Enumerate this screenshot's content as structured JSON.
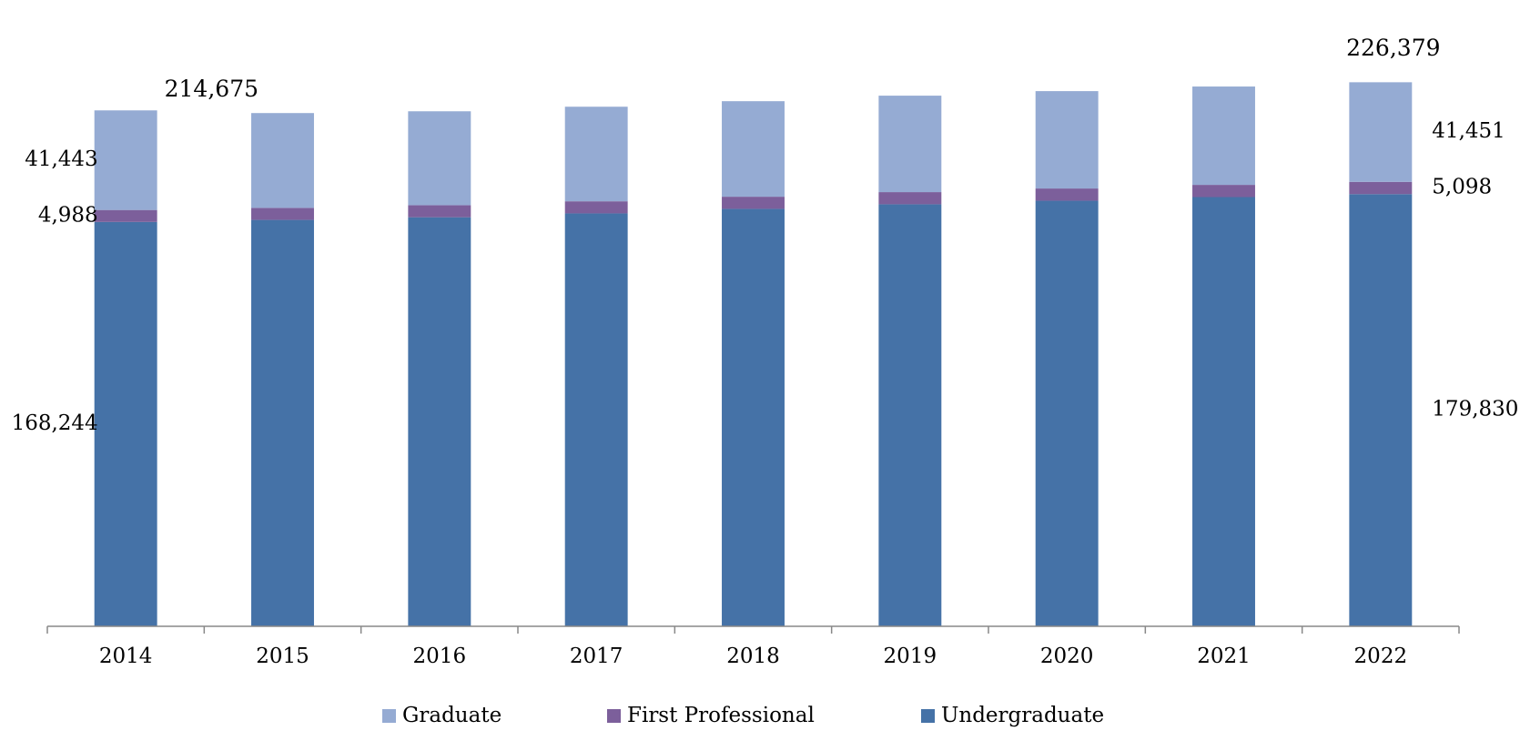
{
  "chart_data": {
    "type": "stacked_bar",
    "categories": [
      "2014",
      "2015",
      "2016",
      "2017",
      "2018",
      "2019",
      "2020",
      "2021",
      "2022"
    ],
    "series": [
      {
        "name": "Undergraduate",
        "color": "#4572a7",
        "values": [
          168244,
          169100,
          170200,
          171800,
          173700,
          175600,
          177100,
          178600,
          179830
        ],
        "value_labels": [
          "168,244",
          null,
          null,
          null,
          null,
          null,
          null,
          null,
          "179,830"
        ]
      },
      {
        "name": "First Professional",
        "color": "#7c5f9b",
        "values": [
          4988,
          5000,
          5020,
          5040,
          5050,
          5060,
          5070,
          5080,
          5098
        ],
        "value_labels": [
          "4,988",
          null,
          null,
          null,
          null,
          null,
          null,
          null,
          "5,098"
        ]
      },
      {
        "name": "Graduate",
        "color": "#95abd3",
        "values": [
          41443,
          39460,
          39080,
          39360,
          39750,
          40140,
          40520,
          40920,
          41451
        ],
        "value_labels": [
          "41,443",
          null,
          null,
          null,
          null,
          null,
          null,
          null,
          "41,451"
        ]
      }
    ],
    "total_labels": [
      "214,675",
      null,
      null,
      null,
      null,
      null,
      null,
      null,
      "226,379"
    ],
    "ylim": [
      0,
      250000
    ],
    "legend": "bottom"
  }
}
